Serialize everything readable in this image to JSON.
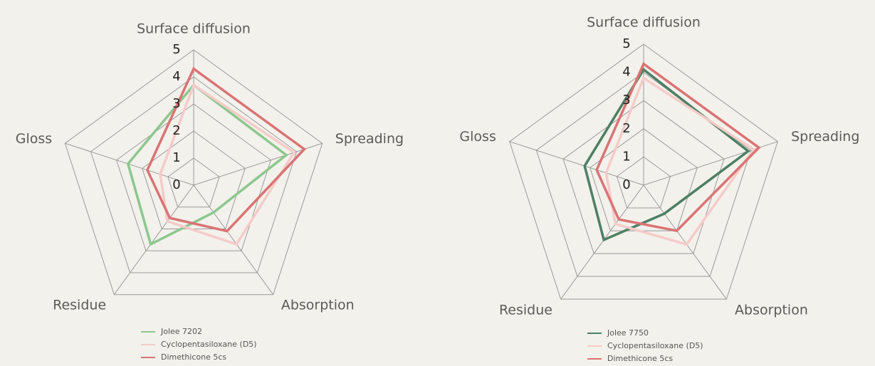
{
  "chart_data": [
    {
      "type": "radar",
      "categories": [
        "Surface diffusion",
        "Spreading",
        "Absorption",
        "Residue",
        "Gloss"
      ],
      "rlim": [
        0,
        5
      ],
      "rticks": [
        0,
        1,
        2,
        3,
        4,
        5
      ],
      "series": [
        {
          "name": "Jolee 7202",
          "color": "#8cc78e",
          "values": [
            3.7,
            3.6,
            1.25,
            2.7,
            2.55
          ]
        },
        {
          "name": "Cyclopentasiloxane (D5)",
          "color": "#f5cbc8",
          "values": [
            3.7,
            3.9,
            2.7,
            1.65,
            1.3
          ]
        },
        {
          "name": "Dimethicone 5cs",
          "color": "#d97474",
          "values": [
            4.3,
            4.3,
            2.1,
            1.5,
            1.8
          ]
        }
      ]
    },
    {
      "type": "radar",
      "categories": [
        "Surface diffusion",
        "Spreading",
        "Absorption",
        "Residue",
        "Gloss"
      ],
      "rlim": [
        0,
        5
      ],
      "rticks": [
        0,
        1,
        2,
        3,
        4,
        5
      ],
      "series": [
        {
          "name": "Jolee 7750",
          "color": "#4d7f64",
          "values": [
            4.1,
            3.9,
            1.25,
            2.4,
            2.2
          ]
        },
        {
          "name": "Cyclopentasiloxane (D5)",
          "color": "#f5cbc8",
          "values": [
            3.8,
            4.1,
            2.6,
            1.7,
            1.4
          ]
        },
        {
          "name": "Dimethicone 5cs",
          "color": "#d97474",
          "values": [
            4.3,
            4.3,
            2.0,
            1.5,
            1.75
          ]
        }
      ]
    }
  ]
}
